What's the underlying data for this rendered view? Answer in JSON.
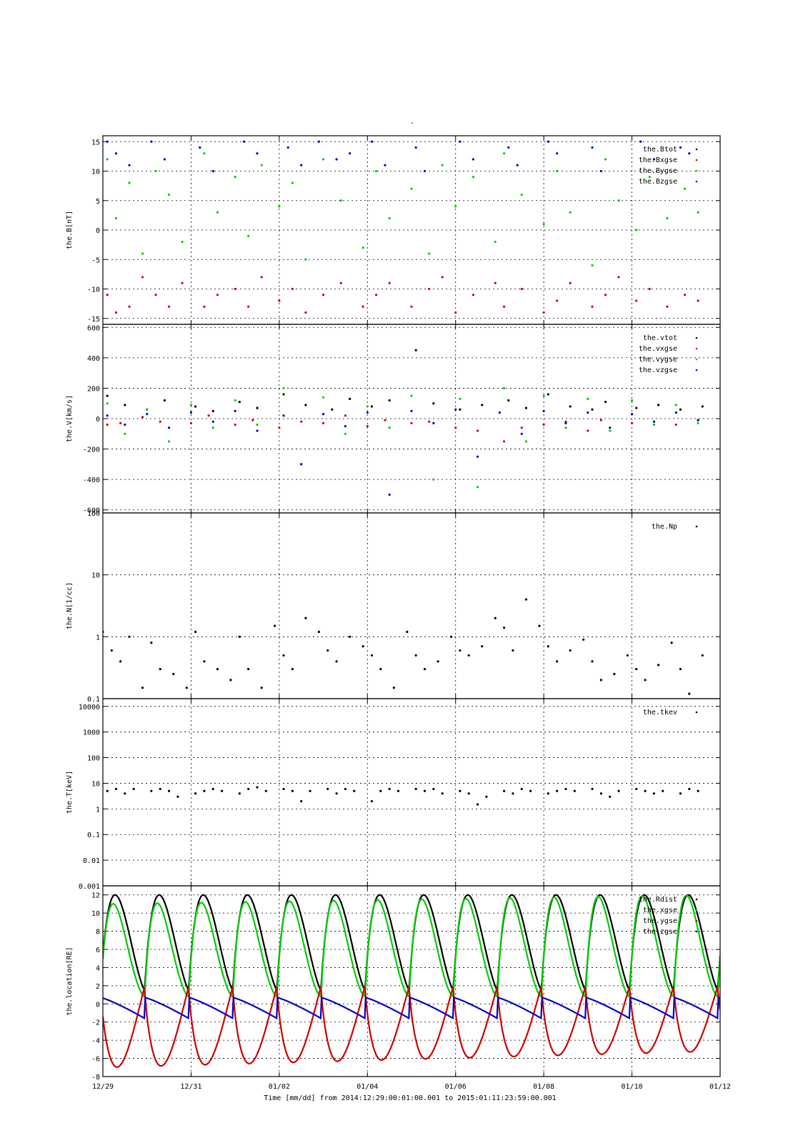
{
  "figure": {
    "title": "-",
    "footer": "Time [mm/dd]  from 2014:12:29:00:01:00.001  to  2015:01:11:23:59:00.001"
  },
  "colors": {
    "black": "#000000",
    "red": "#cc0000",
    "green": "#00cc00",
    "blue": "#0000cc"
  },
  "chart_data": [
    {
      "type": "scatter",
      "ylabel": "the.B[nT]",
      "ylim": [
        -16,
        16
      ],
      "yscale": "linear",
      "yticks": [
        -15,
        -10,
        -5,
        0,
        5,
        10,
        15
      ],
      "ytick_labels": [
        "-15",
        "-10",
        "-5",
        "0",
        "5",
        "10",
        "15"
      ],
      "grid": true,
      "legend_position": "top-right",
      "legend": [
        "the.Btot",
        "the.Bxgse",
        "the.Bygse",
        "the.Bzgse"
      ],
      "series": [
        {
          "name": "the.Bxgse",
          "color": "#cc0000",
          "x": [
            0.1,
            0.3,
            0.6,
            0.9,
            1.2,
            1.5,
            1.8,
            2.3,
            2.6,
            3.0,
            3.3,
            3.6,
            4.0,
            4.3,
            4.6,
            5.0,
            5.4,
            5.9,
            6.2,
            6.5,
            7.0,
            7.4,
            7.7,
            8.0,
            8.4,
            8.9,
            9.1,
            9.5,
            10.0,
            10.3,
            10.6,
            11.1,
            11.4,
            11.7,
            12.1,
            12.4,
            12.8,
            13.2,
            13.5
          ],
          "y": [
            -11,
            -14,
            -13,
            -8,
            -11,
            -13,
            -9,
            -13,
            -11,
            -10,
            -13,
            -8,
            -12,
            -10,
            -14,
            -11,
            -9,
            -13,
            -11,
            -9,
            -13,
            -10,
            -8,
            -14,
            -11,
            -9,
            -13,
            -10,
            -14,
            -12,
            -9,
            -13,
            -11,
            -8,
            -12,
            -10,
            -13,
            -11,
            -12
          ]
        },
        {
          "name": "the.Bygse",
          "color": "#00cc00",
          "x": [
            0.1,
            0.3,
            0.6,
            0.9,
            1.2,
            1.5,
            1.8,
            2.3,
            2.6,
            3.0,
            3.3,
            3.6,
            4.0,
            4.3,
            4.6,
            5.0,
            5.4,
            5.9,
            6.2,
            6.5,
            7.0,
            7.4,
            7.7,
            8.0,
            8.4,
            8.9,
            9.1,
            9.5,
            10.0,
            10.3,
            10.6,
            11.1,
            11.4,
            11.7,
            12.1,
            12.4,
            12.8,
            13.2,
            13.5
          ],
          "y": [
            12,
            2,
            8,
            -4,
            10,
            6,
            -2,
            13,
            3,
            9,
            -1,
            11,
            4,
            8,
            -5,
            12,
            5,
            -3,
            10,
            2,
            7,
            -4,
            11,
            4,
            9,
            -2,
            13,
            6,
            1,
            10,
            3,
            -6,
            12,
            5,
            0,
            9,
            2,
            7,
            3
          ]
        },
        {
          "name": "the.Bzgse",
          "color": "#0000cc",
          "x": [
            0.1,
            0.3,
            0.6,
            1.1,
            1.4,
            2.2,
            2.5,
            3.2,
            3.5,
            4.2,
            4.5,
            4.9,
            5.3,
            5.6,
            6.1,
            6.4,
            7.1,
            7.3,
            8.1,
            8.4,
            9.2,
            9.4,
            10.1,
            10.3,
            11.1,
            11.3,
            12.2,
            12.5,
            13.1,
            13.3
          ],
          "y": [
            15,
            13,
            11,
            15,
            12,
            14,
            10,
            15,
            13,
            14,
            11,
            15,
            12,
            13,
            15,
            11,
            14,
            10,
            15,
            12,
            14,
            11,
            15,
            13,
            14,
            10,
            15,
            12,
            14,
            13
          ]
        }
      ]
    },
    {
      "type": "scatter",
      "ylabel": "the.V[km/s]",
      "ylim": [
        -620,
        620
      ],
      "yscale": "linear",
      "yticks": [
        -600,
        -400,
        -200,
        0,
        200,
        400,
        600
      ],
      "ytick_labels": [
        "-600",
        "-400",
        "-200",
        "0",
        "200",
        "400",
        "600"
      ],
      "grid": true,
      "legend_position": "top-right",
      "legend": [
        "the.vtot",
        "the.vxgse",
        "the.vygse",
        "the.vzgse"
      ],
      "series": [
        {
          "name": "the.vtot",
          "color": "#000000",
          "x": [
            0.1,
            0.5,
            1.0,
            1.4,
            2.1,
            2.5,
            3.1,
            3.5,
            4.1,
            4.6,
            5.2,
            5.6,
            6.1,
            6.5,
            7.1,
            7.5,
            8.1,
            8.6,
            9.2,
            9.6,
            10.1,
            10.6,
            11.1,
            11.4,
            12.1,
            12.6,
            13.1,
            13.6
          ],
          "y": [
            150,
            90,
            60,
            120,
            80,
            50,
            110,
            70,
            160,
            90,
            60,
            130,
            80,
            120,
            450,
            100,
            60,
            90,
            120,
            70,
            160,
            80,
            60,
            110,
            70,
            90,
            60,
            80
          ]
        },
        {
          "name": "the.vxgse",
          "color": "#cc0000",
          "x": [
            0.1,
            0.4,
            0.9,
            1.3,
            2.0,
            2.4,
            3.0,
            3.4,
            4.0,
            4.5,
            5.0,
            5.5,
            6.0,
            6.4,
            7.0,
            7.4,
            8.0,
            8.5,
            9.1,
            9.5,
            10.0,
            10.5,
            11.0,
            11.3,
            12.0,
            12.5,
            13.0,
            13.5
          ],
          "y": [
            -40,
            -30,
            10,
            -20,
            -30,
            20,
            -40,
            -10,
            -60,
            -20,
            -30,
            20,
            -50,
            -10,
            -30,
            -20,
            -60,
            -80,
            -150,
            -60,
            -40,
            -20,
            -80,
            -10,
            -30,
            -20,
            -40,
            -10
          ]
        },
        {
          "name": "the.vygse",
          "color": "#00cc00",
          "x": [
            0.1,
            0.5,
            1.0,
            1.5,
            2.0,
            2.5,
            3.0,
            3.5,
            4.1,
            4.5,
            5.0,
            5.5,
            6.0,
            6.5,
            7.0,
            7.5,
            8.1,
            8.5,
            9.1,
            9.6,
            10.0,
            10.5,
            11.0,
            11.5,
            12.0,
            12.5,
            13.0,
            13.5
          ],
          "y": [
            100,
            -100,
            60,
            -150,
            90,
            -60,
            120,
            -40,
            200,
            -300,
            140,
            -100,
            80,
            -60,
            150,
            -400,
            130,
            -450,
            200,
            -150,
            150,
            -60,
            130,
            -80,
            120,
            -40,
            90,
            -30
          ]
        },
        {
          "name": "the.vzgse",
          "color": "#0000cc",
          "x": [
            0.1,
            0.5,
            1.0,
            1.5,
            2.0,
            2.5,
            3.0,
            3.5,
            4.1,
            4.5,
            5.0,
            5.5,
            6.0,
            6.5,
            7.0,
            7.5,
            8.0,
            8.5,
            9.0,
            9.5,
            10.0,
            10.5,
            11.0,
            11.5,
            12.0,
            12.5,
            13.0,
            13.5
          ],
          "y": [
            20,
            -40,
            30,
            -60,
            40,
            -20,
            50,
            -80,
            20,
            -300,
            30,
            -50,
            40,
            -500,
            50,
            -30,
            60,
            -250,
            40,
            -100,
            50,
            -30,
            40,
            -60,
            30,
            -20,
            40,
            -10
          ]
        }
      ]
    },
    {
      "type": "scatter",
      "ylabel": "the.N[1/cc]",
      "ylim": [
        0.1,
        100
      ],
      "yscale": "log",
      "yticks": [
        0.1,
        1,
        10,
        100
      ],
      "ytick_labels": [
        "0.1",
        "1",
        "10",
        "100"
      ],
      "grid": true,
      "legend_position": "top-right",
      "legend": [
        "the.Np"
      ],
      "series": [
        {
          "name": "the.Np",
          "color": "#000000",
          "x": [
            0.0,
            0.2,
            0.4,
            0.6,
            0.9,
            1.1,
            1.3,
            1.6,
            1.9,
            2.1,
            2.3,
            2.6,
            2.9,
            3.1,
            3.3,
            3.6,
            3.9,
            4.1,
            4.3,
            4.6,
            4.9,
            5.1,
            5.3,
            5.6,
            5.9,
            6.1,
            6.3,
            6.6,
            6.9,
            7.1,
            7.3,
            7.6,
            7.9,
            8.1,
            8.3,
            8.6,
            8.9,
            9.1,
            9.3,
            9.6,
            9.9,
            10.1,
            10.3,
            10.6,
            10.9,
            11.1,
            11.3,
            11.6,
            11.9,
            12.1,
            12.3,
            12.6,
            12.9,
            13.1,
            13.3,
            13.6
          ],
          "y": [
            1.2,
            0.6,
            0.4,
            1.0,
            0.15,
            0.8,
            0.3,
            0.25,
            0.15,
            1.2,
            0.4,
            0.3,
            0.2,
            1.0,
            0.3,
            0.15,
            1.5,
            0.5,
            0.3,
            2.0,
            1.2,
            0.6,
            0.4,
            1.0,
            0.7,
            0.5,
            0.3,
            0.15,
            1.2,
            0.5,
            0.3,
            0.4,
            1.0,
            0.6,
            0.5,
            0.7,
            2.0,
            1.4,
            0.6,
            4.0,
            1.5,
            0.7,
            0.4,
            0.6,
            0.9,
            0.4,
            0.2,
            0.25,
            0.5,
            0.3,
            0.2,
            0.35,
            0.8,
            0.3,
            0.12,
            0.5
          ]
        }
      ]
    },
    {
      "type": "scatter",
      "ylabel": "the.T[keV]",
      "ylim": [
        0.001,
        20000
      ],
      "yscale": "log",
      "yticks": [
        0.001,
        0.01,
        0.1,
        1,
        10,
        100,
        1000,
        10000
      ],
      "ytick_labels": [
        "0.001",
        "0.01",
        "0.1",
        "1",
        "10",
        "100",
        "1000",
        "10000"
      ],
      "grid": true,
      "legend_position": "top-right",
      "legend": [
        "the.tkev"
      ],
      "series": [
        {
          "name": "the.tkev",
          "color": "#000000",
          "x": [
            0.1,
            0.3,
            0.5,
            0.7,
            1.1,
            1.3,
            1.5,
            1.7,
            2.1,
            2.3,
            2.5,
            2.7,
            3.1,
            3.3,
            3.5,
            3.7,
            4.1,
            4.3,
            4.5,
            4.7,
            5.1,
            5.3,
            5.5,
            5.7,
            6.1,
            6.3,
            6.5,
            6.7,
            7.1,
            7.3,
            7.5,
            7.7,
            8.1,
            8.3,
            8.5,
            8.7,
            9.1,
            9.3,
            9.5,
            9.7,
            10.1,
            10.3,
            10.5,
            10.7,
            11.1,
            11.3,
            11.5,
            11.7,
            12.1,
            12.3,
            12.5,
            12.7,
            13.1,
            13.3,
            13.5
          ],
          "y": [
            5,
            6,
            4,
            6,
            5,
            6,
            5,
            3,
            4,
            5,
            6,
            5,
            4,
            6,
            7,
            5,
            6,
            5,
            2,
            5,
            6,
            4,
            6,
            5,
            2,
            5,
            6,
            5,
            6,
            5,
            6,
            4,
            5,
            4,
            1.5,
            3,
            5,
            4,
            6,
            5,
            4,
            5,
            6,
            5,
            6,
            4,
            3,
            5,
            6,
            5,
            4,
            5,
            4,
            6,
            5
          ]
        }
      ]
    },
    {
      "type": "line",
      "ylabel": "the.location[RE]",
      "ylim": [
        -8,
        13
      ],
      "yscale": "linear",
      "yticks": [
        -8,
        -6,
        -4,
        -2,
        0,
        2,
        4,
        6,
        8,
        10,
        12
      ],
      "ytick_labels": [
        "-8",
        "-6",
        "-4",
        "-2",
        "0",
        "2",
        "4",
        "6",
        "8",
        "10",
        "12"
      ],
      "grid": true,
      "legend_position": "top-right",
      "legend": [
        "the.Rdist",
        "the.xgse",
        "the.ygse",
        "the.zgse"
      ],
      "orbit": {
        "period_days": 1.0,
        "first_perigee_day": 0.95,
        "n_samples": 700
      },
      "series": [
        {
          "name": "the.Rdist",
          "color": "#000000",
          "apogee": 12,
          "perigee": 1.5
        },
        {
          "name": "the.xgse",
          "color": "#00cc00",
          "apogee_start": 11,
          "apogee_end": 12,
          "perigee": 0.8
        },
        {
          "name": "the.ygse",
          "color": "#cc0000",
          "min_start": -7,
          "min_end": -5.2,
          "max": 2
        },
        {
          "name": "the.zgse",
          "color": "#0000cc",
          "min": -1.6,
          "max": 0.7
        }
      ]
    }
  ],
  "x_axis": {
    "xlim": [
      0,
      14
    ],
    "ticks": [
      0,
      2,
      4,
      6,
      8,
      10,
      12,
      14
    ],
    "tick_labels": [
      "12/29",
      "12/31",
      "01/02",
      "01/04",
      "01/06",
      "01/08",
      "01/10",
      "01/12"
    ]
  }
}
